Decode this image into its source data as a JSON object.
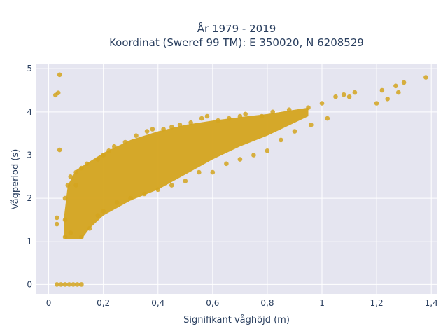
{
  "chart_data": {
    "type": "scatter",
    "title_line1": "År 1979 - 2019",
    "title_line2": "Koordinat (Sweref 99 TM): E 350020, N 6208529",
    "xlabel": "Signifikant våghöjd (m)",
    "ylabel": "Vågperiod (s)",
    "xlim": [
      -0.045,
      1.42
    ],
    "ylim": [
      -0.22,
      5.1
    ],
    "xticks": [
      0,
      0.2,
      0.4,
      0.6,
      0.8,
      1,
      1.2,
      1.4
    ],
    "xtick_labels": [
      "0",
      "0,2",
      "0,4",
      "0,6",
      "0,8",
      "1",
      "1,2",
      "1,4"
    ],
    "yticks": [
      0,
      1,
      2,
      3,
      4,
      5
    ],
    "ytick_labels": [
      "0",
      "1",
      "2",
      "3",
      "4",
      "5"
    ],
    "grid": true,
    "colors": {
      "marker": "#d4a41e",
      "plot_bg": "#e5e5f0",
      "grid": "#ffffff",
      "text": "#2a3f5f"
    },
    "points": [
      [
        0.04,
        4.86
      ],
      [
        0.025,
        4.39
      ],
      [
        0.035,
        4.44
      ],
      [
        0.04,
        3.12
      ],
      [
        0.03,
        1.55
      ],
      [
        0.03,
        1.4
      ],
      [
        0.06,
        1.1
      ],
      [
        0.06,
        1.5
      ],
      [
        0.06,
        2.0
      ],
      [
        0.07,
        2.3
      ],
      [
        0.08,
        2.5
      ],
      [
        0.08,
        1.2
      ],
      [
        0.1,
        2.3
      ],
      [
        0.1,
        2.6
      ],
      [
        0.12,
        2.7
      ],
      [
        0.12,
        1.1
      ],
      [
        0.14,
        2.8
      ],
      [
        0.15,
        1.3
      ],
      [
        0.18,
        2.9
      ],
      [
        0.18,
        1.6
      ],
      [
        0.2,
        3.0
      ],
      [
        0.2,
        1.7
      ],
      [
        0.22,
        3.1
      ],
      [
        0.24,
        3.2
      ],
      [
        0.25,
        1.9
      ],
      [
        0.28,
        3.3
      ],
      [
        0.3,
        2.0
      ],
      [
        0.32,
        3.45
      ],
      [
        0.35,
        2.1
      ],
      [
        0.36,
        3.55
      ],
      [
        0.38,
        3.6
      ],
      [
        0.4,
        2.2
      ],
      [
        0.42,
        3.6
      ],
      [
        0.45,
        3.65
      ],
      [
        0.45,
        2.3
      ],
      [
        0.48,
        3.7
      ],
      [
        0.5,
        2.4
      ],
      [
        0.52,
        3.75
      ],
      [
        0.55,
        2.6
      ],
      [
        0.56,
        3.85
      ],
      [
        0.58,
        3.9
      ],
      [
        0.6,
        2.6
      ],
      [
        0.62,
        3.8
      ],
      [
        0.65,
        2.8
      ],
      [
        0.66,
        3.85
      ],
      [
        0.7,
        3.9
      ],
      [
        0.7,
        2.9
      ],
      [
        0.72,
        3.95
      ],
      [
        0.75,
        3.0
      ],
      [
        0.78,
        3.9
      ],
      [
        0.8,
        3.1
      ],
      [
        0.82,
        4.0
      ],
      [
        0.85,
        3.35
      ],
      [
        0.88,
        4.05
      ],
      [
        0.9,
        3.55
      ],
      [
        0.95,
        4.1
      ],
      [
        0.96,
        3.7
      ],
      [
        1.0,
        4.2
      ],
      [
        1.02,
        3.85
      ],
      [
        1.05,
        4.35
      ],
      [
        1.08,
        4.4
      ],
      [
        1.1,
        4.35
      ],
      [
        1.12,
        4.45
      ],
      [
        1.2,
        4.2
      ],
      [
        1.22,
        4.5
      ],
      [
        1.24,
        4.3
      ],
      [
        1.27,
        4.6
      ],
      [
        1.28,
        4.45
      ],
      [
        1.3,
        4.68
      ],
      [
        1.38,
        4.8
      ],
      [
        0.03,
        0
      ],
      [
        0.045,
        0
      ],
      [
        0.06,
        0
      ],
      [
        0.075,
        0
      ],
      [
        0.09,
        0
      ],
      [
        0.105,
        0
      ],
      [
        0.12,
        0
      ]
    ]
  }
}
